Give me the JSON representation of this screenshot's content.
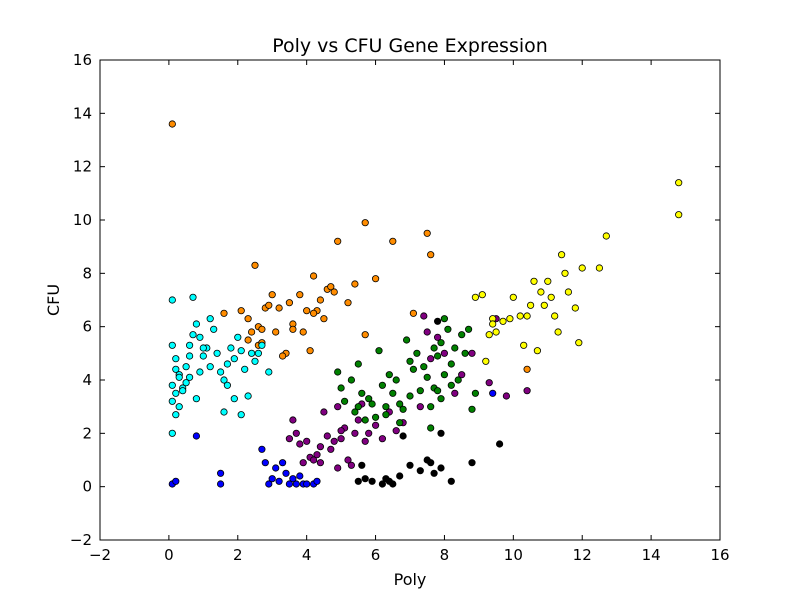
{
  "chart_data": {
    "type": "scatter",
    "title": "Poly vs CFU Gene Expression",
    "xlabel": "Poly",
    "ylabel": "CFU",
    "xlim": [
      -2,
      16
    ],
    "ylim": [
      -2,
      16
    ],
    "xticks": [
      "−2",
      "0",
      "2",
      "4",
      "6",
      "8",
      "10",
      "12",
      "14",
      "16"
    ],
    "yticks": [
      "−2",
      "0",
      "2",
      "4",
      "6",
      "8",
      "10",
      "12",
      "14",
      "16"
    ],
    "grid": false,
    "series": [
      {
        "color": "#ff8c00",
        "points": [
          [
            0.1,
            13.6
          ],
          [
            1.6,
            6.5
          ],
          [
            2.1,
            6.6
          ],
          [
            2.3,
            6.3
          ],
          [
            2.5,
            8.3
          ],
          [
            2.6,
            6.0
          ],
          [
            2.7,
            5.9
          ],
          [
            2.8,
            6.7
          ],
          [
            2.9,
            6.8
          ],
          [
            3.0,
            7.2
          ],
          [
            3.1,
            5.8
          ],
          [
            3.2,
            6.7
          ],
          [
            3.4,
            5.0
          ],
          [
            3.5,
            6.9
          ],
          [
            3.6,
            6.1
          ],
          [
            3.8,
            7.2
          ],
          [
            3.9,
            5.8
          ],
          [
            4.0,
            6.6
          ],
          [
            4.1,
            5.1
          ],
          [
            4.2,
            7.9
          ],
          [
            4.3,
            6.6
          ],
          [
            4.4,
            7.0
          ],
          [
            4.5,
            6.3
          ],
          [
            4.6,
            7.4
          ],
          [
            4.7,
            7.5
          ],
          [
            4.9,
            9.2
          ],
          [
            5.2,
            6.9
          ],
          [
            5.4,
            7.6
          ],
          [
            5.7,
            9.9
          ],
          [
            6.0,
            7.8
          ],
          [
            6.5,
            9.2
          ],
          [
            7.5,
            9.5
          ],
          [
            7.6,
            8.7
          ],
          [
            7.1,
            6.5
          ],
          [
            5.7,
            5.7
          ],
          [
            2.3,
            5.5
          ],
          [
            2.6,
            5.3
          ],
          [
            3.3,
            4.9
          ],
          [
            10.4,
            4.4
          ],
          [
            2.7,
            5.4
          ],
          [
            3.6,
            5.9
          ],
          [
            4.2,
            6.5
          ],
          [
            4.8,
            7.3
          ],
          [
            2.4,
            5.8
          ]
        ]
      },
      {
        "color": "#00ffff",
        "points": [
          [
            0.1,
            7.0
          ],
          [
            0.7,
            7.1
          ],
          [
            0.1,
            5.3
          ],
          [
            0.2,
            4.8
          ],
          [
            0.3,
            4.2
          ],
          [
            0.1,
            3.8
          ],
          [
            0.2,
            3.5
          ],
          [
            0.1,
            3.2
          ],
          [
            0.3,
            3.0
          ],
          [
            0.2,
            2.7
          ],
          [
            0.1,
            2.0
          ],
          [
            0.4,
            3.7
          ],
          [
            0.5,
            3.9
          ],
          [
            0.6,
            4.1
          ],
          [
            0.5,
            4.5
          ],
          [
            0.6,
            5.3
          ],
          [
            0.7,
            5.7
          ],
          [
            0.8,
            6.1
          ],
          [
            0.9,
            4.3
          ],
          [
            1.0,
            4.9
          ],
          [
            1.1,
            5.2
          ],
          [
            1.2,
            4.5
          ],
          [
            1.3,
            5.9
          ],
          [
            1.4,
            5.0
          ],
          [
            1.5,
            4.3
          ],
          [
            1.6,
            4.0
          ],
          [
            1.7,
            4.6
          ],
          [
            1.8,
            5.2
          ],
          [
            1.9,
            4.8
          ],
          [
            2.0,
            5.6
          ],
          [
            2.1,
            5.1
          ],
          [
            2.2,
            4.4
          ],
          [
            2.3,
            3.4
          ],
          [
            2.4,
            5.0
          ],
          [
            2.5,
            4.7
          ],
          [
            2.6,
            5.0
          ],
          [
            2.9,
            4.3
          ],
          [
            2.1,
            2.7
          ],
          [
            1.6,
            2.8
          ],
          [
            1.9,
            3.3
          ],
          [
            0.8,
            3.3
          ],
          [
            0.4,
            3.6
          ],
          [
            0.3,
            4.1
          ],
          [
            0.2,
            4.4
          ],
          [
            1.2,
            6.3
          ],
          [
            0.9,
            5.6
          ],
          [
            1.7,
            3.8
          ],
          [
            2.7,
            5.3
          ],
          [
            0.6,
            4.9
          ],
          [
            1.0,
            5.2
          ]
        ]
      },
      {
        "color": "#0000ff",
        "points": [
          [
            0.1,
            0.1
          ],
          [
            0.2,
            0.2
          ],
          [
            0.8,
            1.9
          ],
          [
            1.5,
            0.5
          ],
          [
            1.5,
            0.1
          ],
          [
            2.7,
            1.4
          ],
          [
            2.8,
            0.9
          ],
          [
            2.9,
            0.1
          ],
          [
            3.0,
            0.3
          ],
          [
            3.1,
            0.7
          ],
          [
            3.2,
            0.2
          ],
          [
            3.3,
            0.9
          ],
          [
            3.4,
            0.5
          ],
          [
            3.5,
            0.1
          ],
          [
            3.6,
            0.3
          ],
          [
            3.7,
            0.1
          ],
          [
            3.8,
            0.4
          ],
          [
            3.9,
            0.1
          ],
          [
            4.0,
            0.1
          ],
          [
            4.2,
            0.1
          ],
          [
            4.3,
            0.2
          ],
          [
            9.4,
            3.5
          ]
        ]
      },
      {
        "color": "#800080",
        "points": [
          [
            3.5,
            1.8
          ],
          [
            3.6,
            2.5
          ],
          [
            3.7,
            2.0
          ],
          [
            3.8,
            1.6
          ],
          [
            3.9,
            0.9
          ],
          [
            4.0,
            1.7
          ],
          [
            4.1,
            1.1
          ],
          [
            4.2,
            1.0
          ],
          [
            4.3,
            1.2
          ],
          [
            4.4,
            1.5
          ],
          [
            4.5,
            2.8
          ],
          [
            4.6,
            1.9
          ],
          [
            4.7,
            1.4
          ],
          [
            4.8,
            1.7
          ],
          [
            4.9,
            3.0
          ],
          [
            5.0,
            1.8
          ],
          [
            5.1,
            2.2
          ],
          [
            5.2,
            1.0
          ],
          [
            5.3,
            0.8
          ],
          [
            5.4,
            2.0
          ],
          [
            5.5,
            2.5
          ],
          [
            5.6,
            3.1
          ],
          [
            5.8,
            2.0
          ],
          [
            6.0,
            2.3
          ],
          [
            6.2,
            1.8
          ],
          [
            6.4,
            2.8
          ],
          [
            6.6,
            2.1
          ],
          [
            7.3,
            3.0
          ],
          [
            7.4,
            6.4
          ],
          [
            7.5,
            5.8
          ],
          [
            7.6,
            4.8
          ],
          [
            7.8,
            5.6
          ],
          [
            8.0,
            5.0
          ],
          [
            8.3,
            3.5
          ],
          [
            8.5,
            4.2
          ],
          [
            8.8,
            5.0
          ],
          [
            9.3,
            3.9
          ],
          [
            9.5,
            6.3
          ],
          [
            9.8,
            3.4
          ],
          [
            10.4,
            3.6
          ],
          [
            6.8,
            2.4
          ],
          [
            5.7,
            1.7
          ],
          [
            4.4,
            0.9
          ],
          [
            5.0,
            2.1
          ],
          [
            4.9,
            0.7
          ]
        ]
      },
      {
        "color": "#008000",
        "points": [
          [
            4.9,
            4.3
          ],
          [
            5.0,
            3.7
          ],
          [
            5.1,
            3.2
          ],
          [
            5.3,
            4.0
          ],
          [
            5.4,
            2.8
          ],
          [
            5.5,
            3.0
          ],
          [
            5.6,
            3.5
          ],
          [
            5.7,
            2.5
          ],
          [
            5.8,
            3.3
          ],
          [
            5.9,
            3.1
          ],
          [
            6.0,
            2.6
          ],
          [
            6.1,
            5.1
          ],
          [
            6.2,
            3.8
          ],
          [
            6.3,
            2.7
          ],
          [
            6.4,
            4.2
          ],
          [
            6.5,
            3.5
          ],
          [
            6.6,
            4.0
          ],
          [
            6.7,
            3.1
          ],
          [
            6.8,
            2.9
          ],
          [
            6.9,
            5.5
          ],
          [
            7.0,
            3.4
          ],
          [
            7.1,
            4.4
          ],
          [
            7.2,
            5.0
          ],
          [
            7.3,
            3.6
          ],
          [
            7.4,
            4.5
          ],
          [
            7.5,
            4.1
          ],
          [
            7.6,
            3.0
          ],
          [
            7.7,
            3.7
          ],
          [
            7.8,
            4.9
          ],
          [
            7.9,
            5.4
          ],
          [
            8.0,
            4.2
          ],
          [
            8.1,
            5.9
          ],
          [
            8.2,
            4.6
          ],
          [
            8.3,
            5.2
          ],
          [
            8.4,
            4.0
          ],
          [
            8.5,
            5.7
          ],
          [
            8.6,
            5.0
          ],
          [
            8.7,
            5.9
          ],
          [
            8.8,
            2.9
          ],
          [
            8.9,
            3.5
          ],
          [
            7.6,
            2.2
          ],
          [
            7.9,
            3.3
          ],
          [
            5.5,
            4.6
          ],
          [
            6.7,
            2.4
          ],
          [
            6.3,
            3.0
          ],
          [
            7.0,
            4.7
          ],
          [
            7.7,
            5.2
          ],
          [
            8.2,
            3.8
          ],
          [
            8.0,
            6.3
          ],
          [
            7.8,
            3.6
          ]
        ]
      },
      {
        "color": "#000000",
        "points": [
          [
            5.5,
            0.2
          ],
          [
            5.7,
            0.3
          ],
          [
            5.9,
            0.2
          ],
          [
            6.2,
            0.1
          ],
          [
            6.3,
            0.3
          ],
          [
            6.5,
            0.1
          ],
          [
            6.7,
            0.4
          ],
          [
            6.8,
            1.9
          ],
          [
            7.0,
            0.8
          ],
          [
            7.3,
            0.6
          ],
          [
            7.5,
            1.0
          ],
          [
            7.6,
            0.9
          ],
          [
            7.7,
            0.5
          ],
          [
            7.9,
            2.0
          ],
          [
            8.2,
            0.2
          ],
          [
            8.8,
            0.9
          ],
          [
            9.6,
            1.6
          ],
          [
            7.8,
            6.2
          ],
          [
            5.6,
            0.8
          ],
          [
            6.4,
            0.2
          ],
          [
            7.9,
            0.7
          ]
        ]
      },
      {
        "color": "#ffff00",
        "points": [
          [
            8.9,
            7.1
          ],
          [
            9.1,
            7.2
          ],
          [
            9.3,
            5.7
          ],
          [
            9.4,
            6.3
          ],
          [
            9.5,
            5.8
          ],
          [
            9.7,
            6.2
          ],
          [
            9.9,
            6.3
          ],
          [
            10.0,
            7.1
          ],
          [
            10.2,
            6.4
          ],
          [
            10.3,
            5.3
          ],
          [
            10.4,
            6.4
          ],
          [
            10.6,
            7.7
          ],
          [
            10.7,
            5.1
          ],
          [
            10.8,
            7.3
          ],
          [
            10.9,
            6.8
          ],
          [
            11.0,
            7.7
          ],
          [
            11.1,
            7.1
          ],
          [
            11.2,
            6.4
          ],
          [
            11.3,
            5.8
          ],
          [
            11.4,
            8.7
          ],
          [
            11.5,
            8.0
          ],
          [
            11.6,
            7.3
          ],
          [
            11.8,
            6.7
          ],
          [
            12.0,
            8.2
          ],
          [
            12.5,
            8.2
          ],
          [
            12.7,
            9.4
          ],
          [
            14.8,
            11.4
          ],
          [
            14.8,
            10.2
          ],
          [
            9.2,
            4.7
          ],
          [
            9.4,
            6.1
          ],
          [
            11.9,
            5.4
          ],
          [
            10.5,
            6.8
          ]
        ]
      }
    ]
  }
}
